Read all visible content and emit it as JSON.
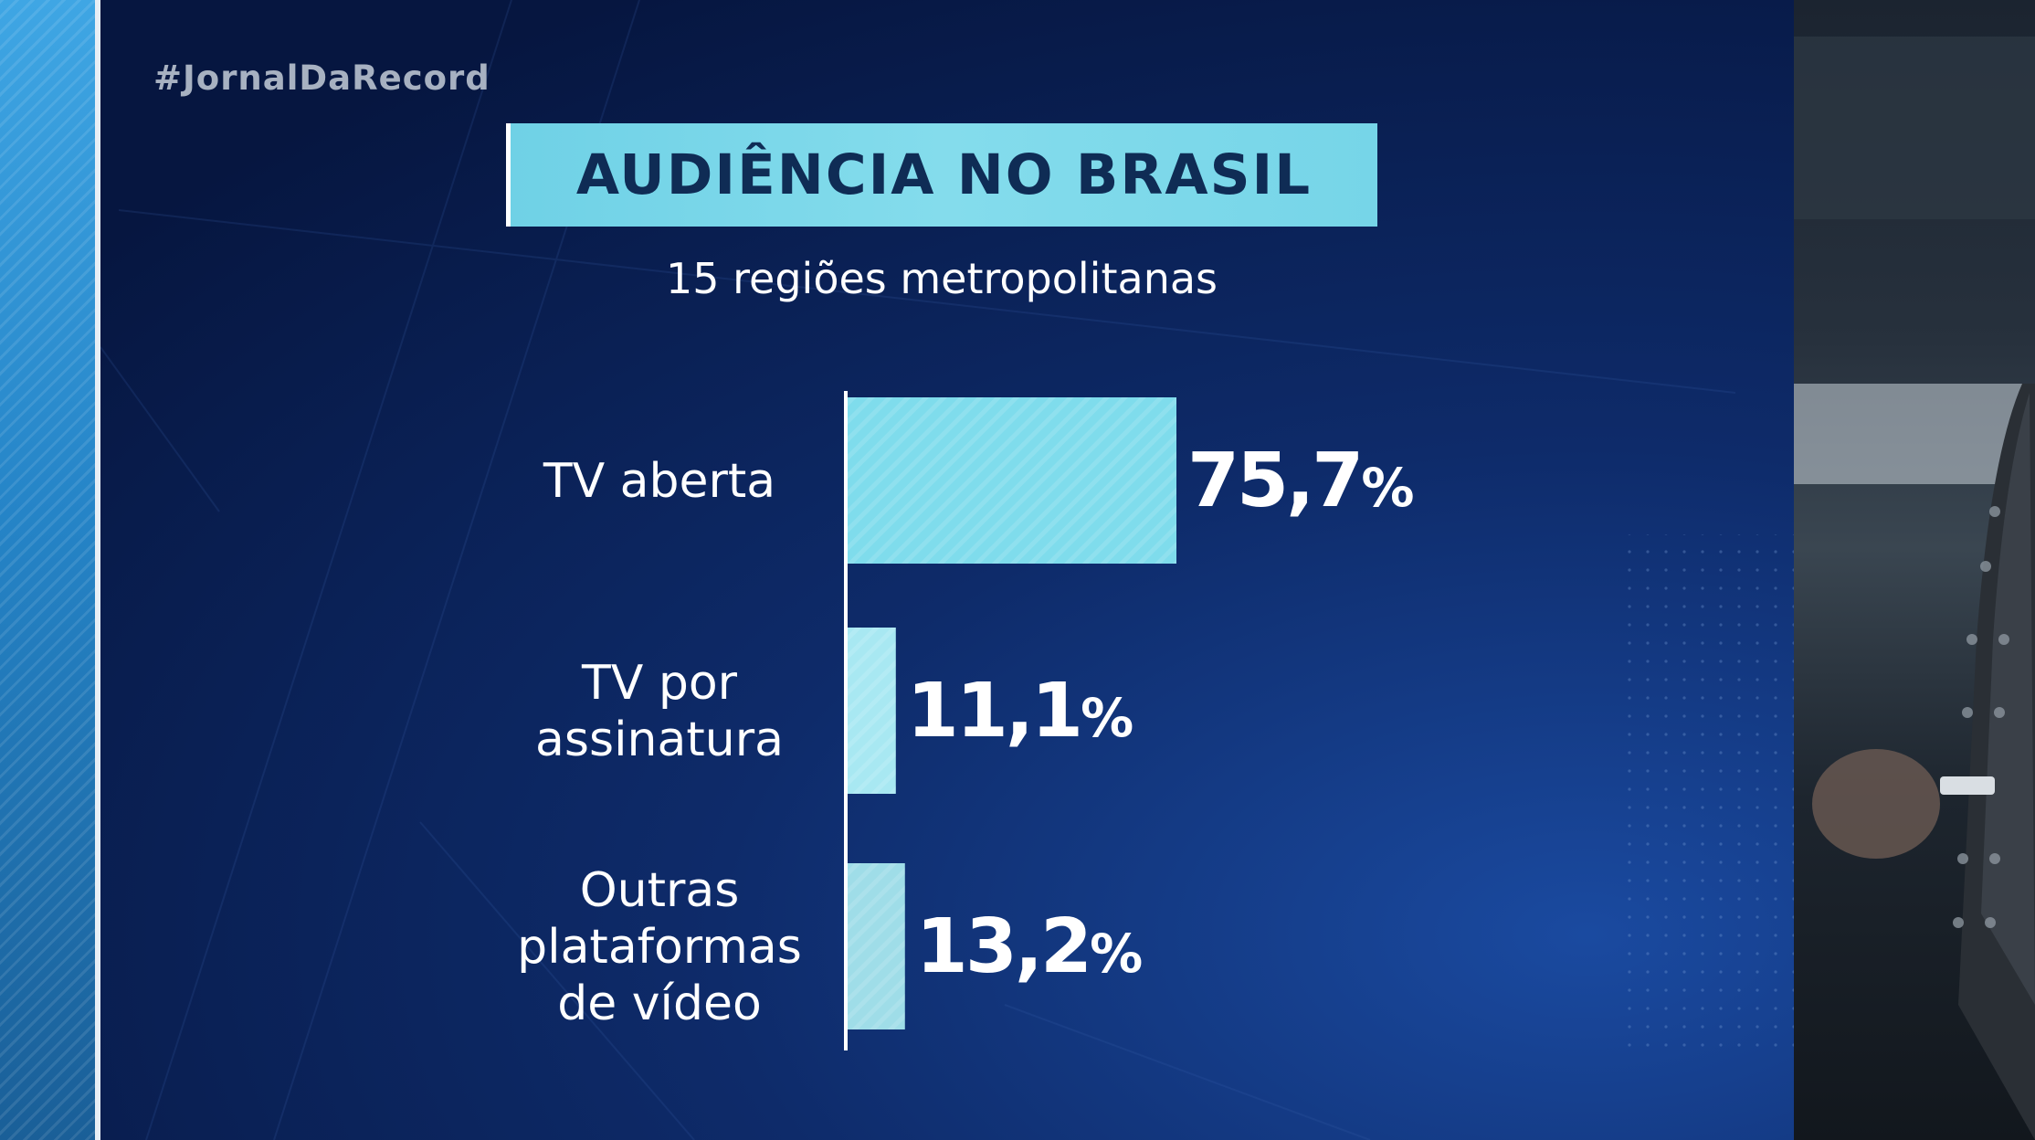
{
  "hashtag": "#JornalDaRecord",
  "colors": {
    "background": "#0a1f52",
    "title_box": "#7ad8ea",
    "title_text": "#0f2c55",
    "bar_primary": "#7fdcec",
    "bar_secondary": "#a8e8f2",
    "bar_tertiary": "#9fdde8",
    "text": "#ffffff"
  },
  "chart_data": {
    "type": "bar",
    "orientation": "horizontal",
    "title": "AUDIÊNCIA NO BRASIL",
    "subtitle": "15 regiões metropolitanas",
    "categories": [
      [
        "TV aberta"
      ],
      [
        "TV por",
        "assinatura"
      ],
      [
        "Outras",
        "plataformas",
        "de vídeo"
      ]
    ],
    "values": [
      75.7,
      11.1,
      13.2
    ],
    "value_labels": [
      "75,7",
      "11,1",
      "13,2"
    ],
    "unit": "%",
    "xlim": [
      0,
      75.7
    ],
    "grid": false,
    "legend": "none"
  }
}
